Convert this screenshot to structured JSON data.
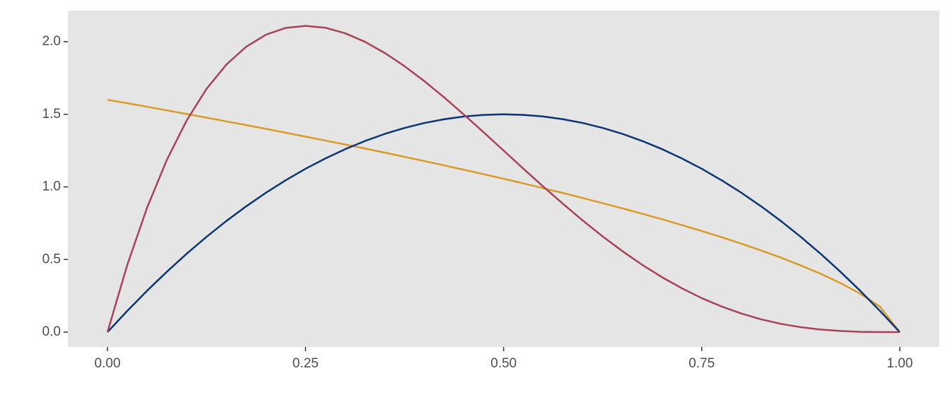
{
  "chart_data": {
    "type": "line",
    "x": [
      0,
      0.025,
      0.05,
      0.075,
      0.1,
      0.125,
      0.15,
      0.175,
      0.2,
      0.225,
      0.25,
      0.275,
      0.3,
      0.325,
      0.35,
      0.375,
      0.4,
      0.425,
      0.45,
      0.475,
      0.5,
      0.525,
      0.55,
      0.575,
      0.6,
      0.625,
      0.65,
      0.675,
      0.7,
      0.725,
      0.75,
      0.775,
      0.8,
      0.825,
      0.85,
      0.875,
      0.9,
      0.925,
      0.95,
      0.975,
      1
    ],
    "series": [
      {
        "color": "#d99b28",
        "values": [
          1.6,
          1.576,
          1.552,
          1.527,
          1.502,
          1.477,
          1.451,
          1.426,
          1.4,
          1.373,
          1.346,
          1.319,
          1.292,
          1.264,
          1.236,
          1.207,
          1.178,
          1.148,
          1.118,
          1.087,
          1.056,
          1.024,
          0.991,
          0.958,
          0.923,
          0.888,
          0.852,
          0.815,
          0.777,
          0.737,
          0.696,
          0.654,
          0.609,
          0.562,
          0.513,
          0.459,
          0.402,
          0.338,
          0.265,
          0.175,
          0
        ]
      },
      {
        "color": "#0b3574",
        "values": [
          0,
          0.146,
          0.285,
          0.416,
          0.54,
          0.656,
          0.765,
          0.866,
          0.96,
          1.046,
          1.125,
          1.196,
          1.26,
          1.316,
          1.365,
          1.406,
          1.44,
          1.466,
          1.485,
          1.496,
          1.5,
          1.496,
          1.485,
          1.466,
          1.44,
          1.406,
          1.365,
          1.316,
          1.26,
          1.196,
          1.125,
          1.046,
          0.96,
          0.866,
          0.765,
          0.656,
          0.54,
          0.416,
          0.285,
          0.146,
          0
        ]
      },
      {
        "color": "#a84259",
        "values": [
          0,
          0.463,
          0.857,
          1.187,
          1.458,
          1.675,
          1.842,
          1.965,
          2.048,
          2.095,
          2.109,
          2.096,
          2.058,
          1.999,
          1.922,
          1.831,
          1.728,
          1.616,
          1.497,
          1.375,
          1.25,
          1.125,
          1.002,
          0.883,
          0.768,
          0.659,
          0.557,
          0.463,
          0.378,
          0.302,
          0.234,
          0.177,
          0.128,
          0.088,
          0.057,
          0.034,
          0.018,
          0.008,
          0.002,
          0,
          0
        ]
      }
    ],
    "xlim": [
      -0.05,
      1.05
    ],
    "ylim": [
      -0.102,
      2.214
    ],
    "xticks": [
      {
        "value": 0,
        "label": "0.00"
      },
      {
        "value": 0.25,
        "label": "0.25"
      },
      {
        "value": 0.5,
        "label": "0.50"
      },
      {
        "value": 0.75,
        "label": "0.75"
      },
      {
        "value": 1,
        "label": "1.00"
      }
    ],
    "yticks": [
      {
        "value": 0,
        "label": "0.0"
      },
      {
        "value": 0.5,
        "label": "0.5"
      },
      {
        "value": 1,
        "label": "1.0"
      },
      {
        "value": 1.5,
        "label": "1.5"
      },
      {
        "value": 2,
        "label": "2.0"
      }
    ],
    "grid": false,
    "background": "#e5e5e5"
  }
}
